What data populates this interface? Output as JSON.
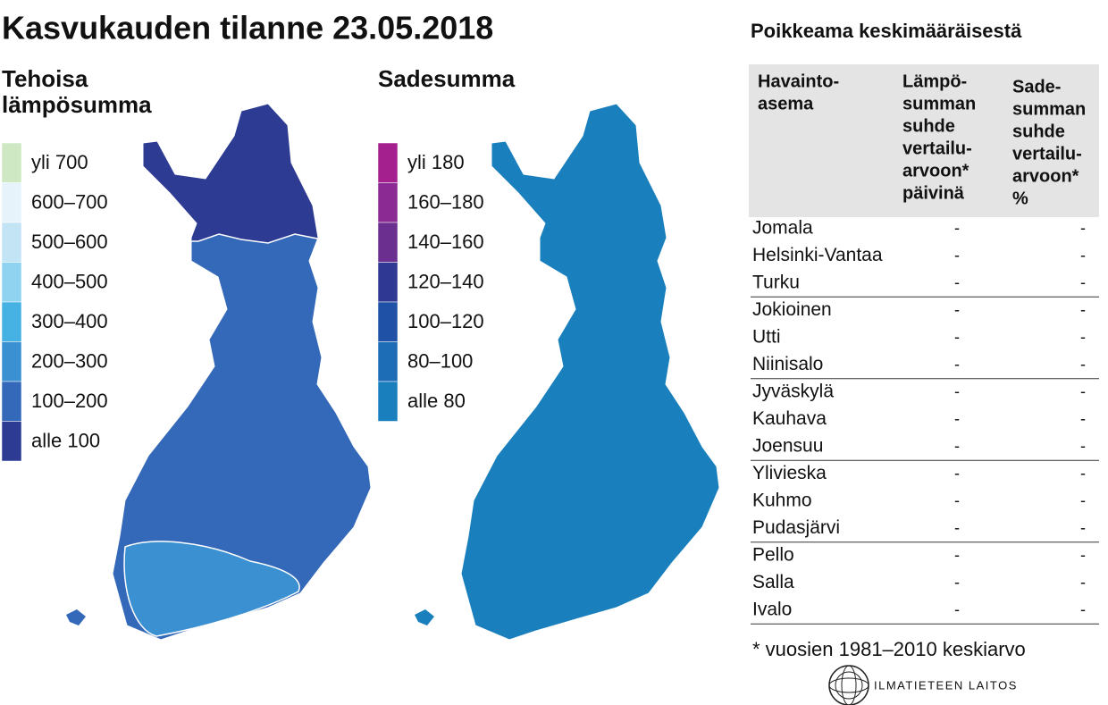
{
  "title": "Kasvukauden tilanne 23.05.2018",
  "maps": [
    {
      "title_lines": [
        "Tehoisa",
        "lämpösumma"
      ],
      "legend": [
        {
          "label": "yli 700",
          "color": "#cfe8c4"
        },
        {
          "label": "600–700",
          "color": "#e6f3fb"
        },
        {
          "label": "500–600",
          "color": "#c3e4f5"
        },
        {
          "label": "400–500",
          "color": "#8fd3f0"
        },
        {
          "label": "300–400",
          "color": "#45b2e3"
        },
        {
          "label": "200–300",
          "color": "#3a90d1"
        },
        {
          "label": "100–200",
          "color": "#3468b8"
        },
        {
          "label": "alle 100",
          "color": "#2d3b93"
        }
      ]
    },
    {
      "title_lines": [
        "Sadesumma"
      ],
      "legend": [
        {
          "label": "yli 180",
          "color": "#a3208e"
        },
        {
          "label": "160–180",
          "color": "#8a2a92"
        },
        {
          "label": "140–160",
          "color": "#6a2f8f"
        },
        {
          "label": "120–140",
          "color": "#2f3893"
        },
        {
          "label": "100–120",
          "color": "#1f52a6"
        },
        {
          "label": "80–100",
          "color": "#1d6cb6"
        },
        {
          "label": "alle 80",
          "color": "#1a80bd"
        }
      ]
    }
  ],
  "table": {
    "title": "Poikkeama keskimääräisestä",
    "header": [
      [
        "Havainto-",
        "asema"
      ],
      [
        "Lämpö-",
        "summan",
        "suhde",
        "vertailu-",
        "arvoon*",
        "päivinä"
      ],
      [
        "Sade-",
        "summan",
        "suhde",
        "vertailu-",
        "arvoon*",
        "%"
      ]
    ],
    "rows": [
      [
        "Jomala",
        "-",
        "-"
      ],
      [
        "Helsinki-Vantaa",
        "-",
        "-"
      ],
      [
        "Turku",
        "-",
        "-"
      ],
      [
        "Jokioinen",
        "-",
        "-"
      ],
      [
        "Utti",
        "-",
        "-"
      ],
      [
        "Niinisalo",
        "-",
        "-"
      ],
      [
        "Jyväskylä",
        "-",
        "-"
      ],
      [
        "Kauhava",
        "-",
        "-"
      ],
      [
        "Joensuu",
        "-",
        "-"
      ],
      [
        "Ylivieska",
        "-",
        "-"
      ],
      [
        "Kuhmo",
        "-",
        "-"
      ],
      [
        "Pudasjärvi",
        "-",
        "-"
      ],
      [
        "Pello",
        "-",
        "-"
      ],
      [
        "Salla",
        "-",
        "-"
      ],
      [
        "Ivalo",
        "-",
        "-"
      ]
    ]
  },
  "footnote": "* vuosien 1981–2010 keskiarvo",
  "logo": "ILMATIETEEN LAITOS"
}
